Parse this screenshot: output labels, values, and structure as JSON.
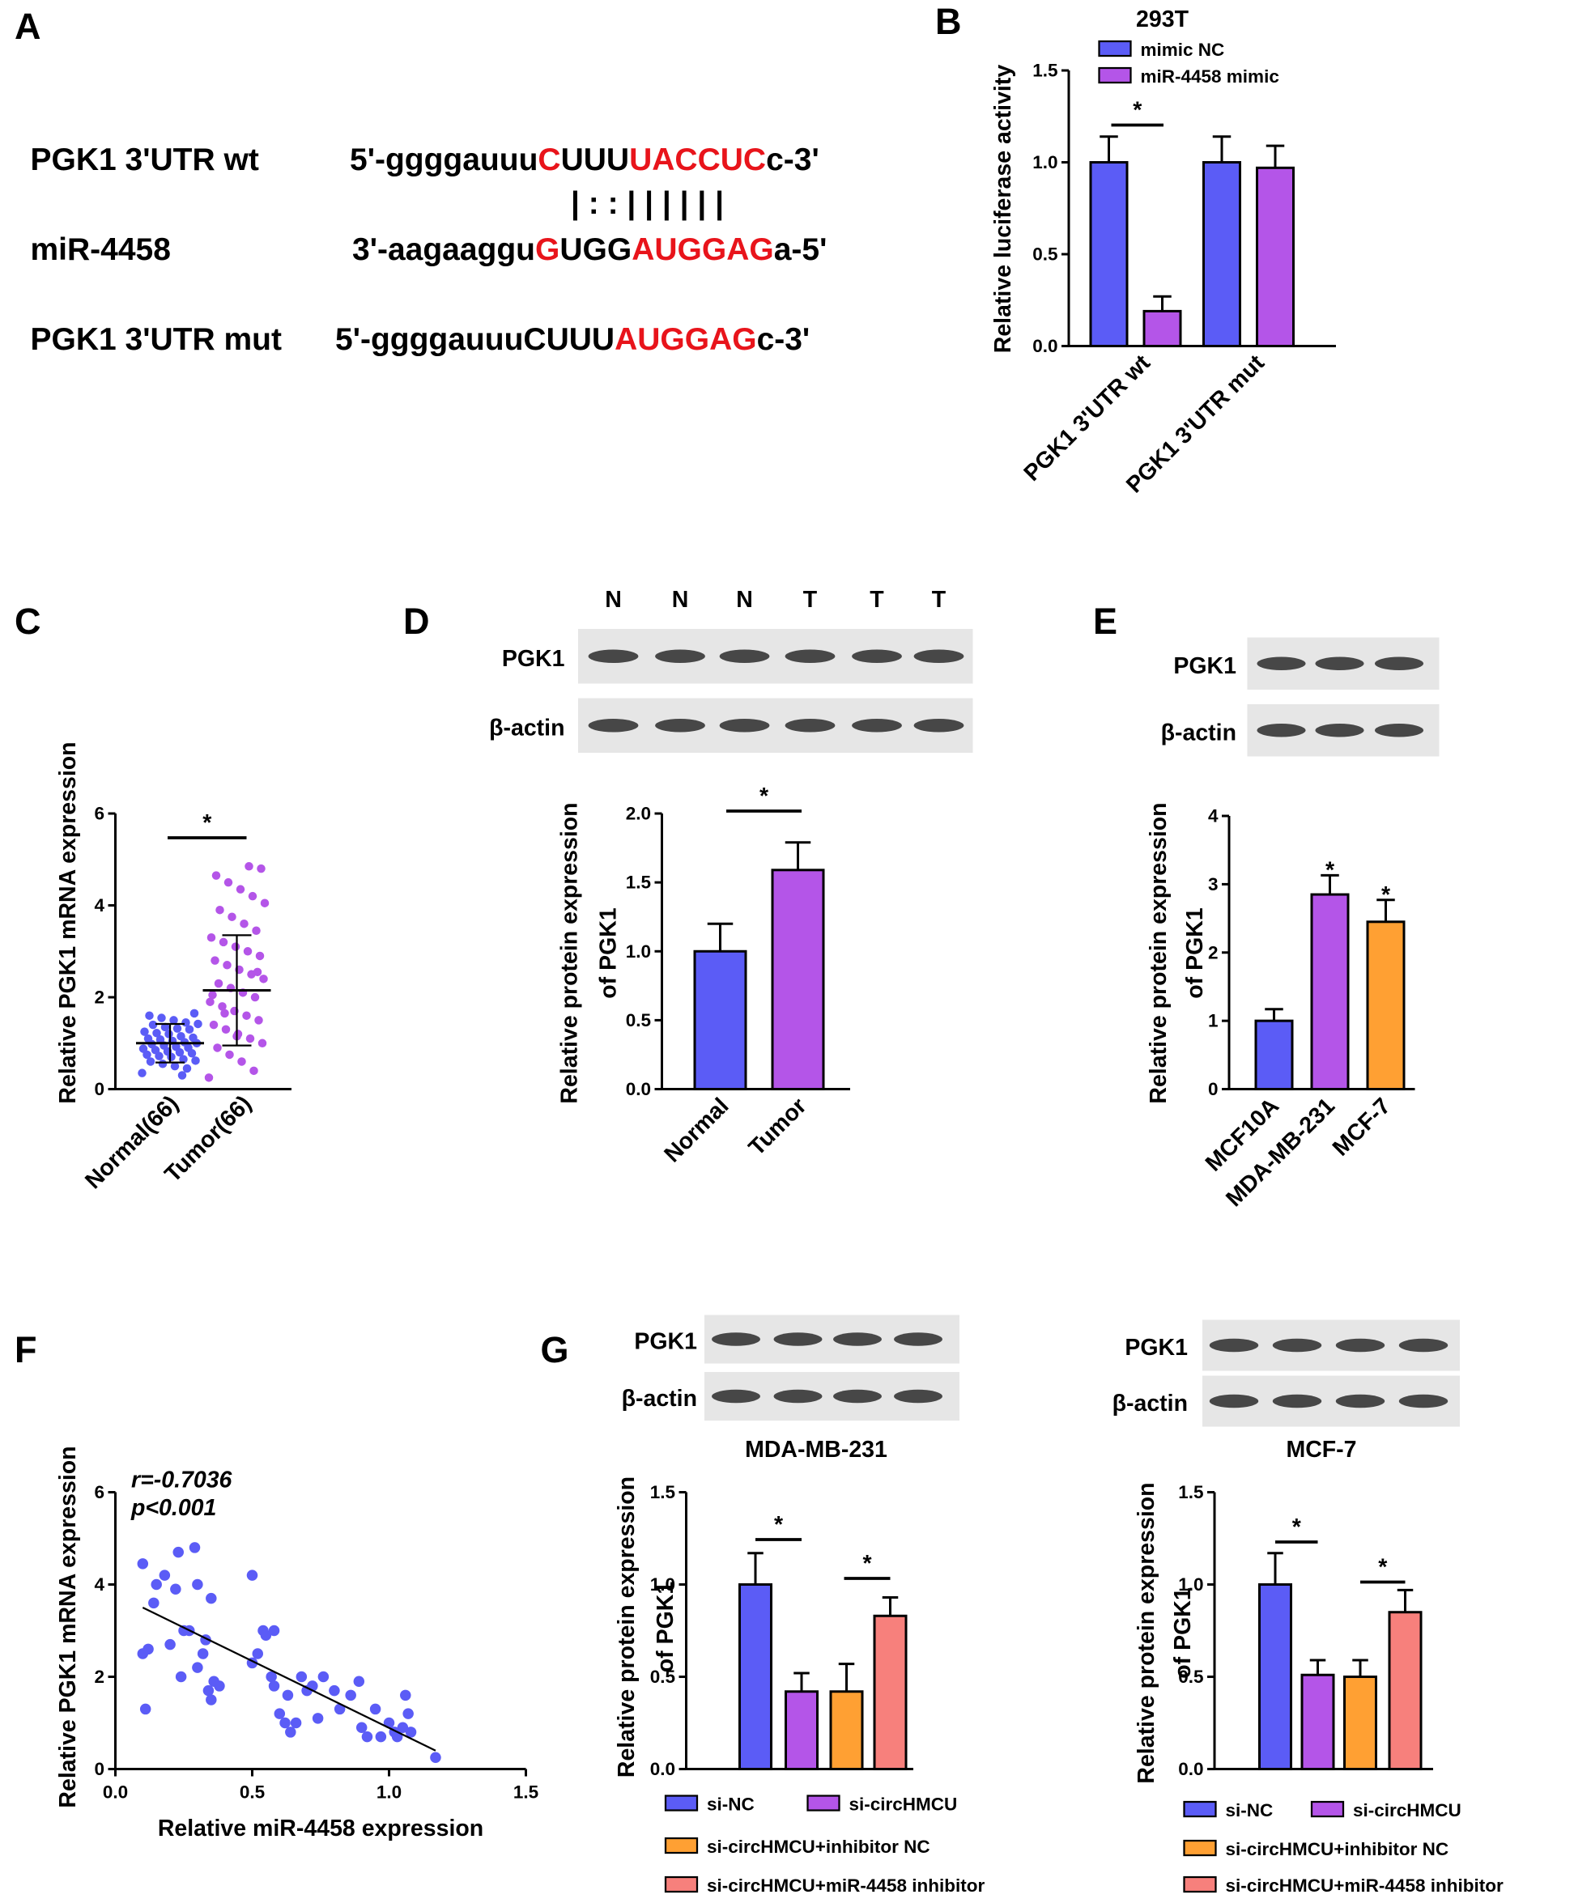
{
  "panel_labels": [
    "A",
    "B",
    "C",
    "D",
    "E",
    "F",
    "G"
  ],
  "sequence": {
    "rows": [
      {
        "label": "PGK1 3'UTR wt",
        "segments": [
          {
            "text": "5'-ggggauuu",
            "red": false
          },
          {
            "text": "C",
            "red": true
          },
          {
            "text": "UUU",
            "red": false
          },
          {
            "text": "UACCUC",
            "red": true
          },
          {
            "text": "c-3'",
            "red": false
          }
        ]
      },
      {
        "label": "miR-4458",
        "segments": [
          {
            "text": "3'-aagaaggu",
            "red": false
          },
          {
            "text": "G",
            "red": true
          },
          {
            "text": "UGG",
            "red": false
          },
          {
            "text": "AUGGAG",
            "red": true
          },
          {
            "text": "a-5'",
            "red": false
          }
        ]
      },
      {
        "label": "PGK1 3'UTR mut",
        "segments": [
          {
            "text": "5'-ggggauuuCUUU",
            "red": false
          },
          {
            "text": "AUGGAG",
            "red": true
          },
          {
            "text": "c-3'",
            "red": false
          }
        ]
      }
    ],
    "pairing": "|   : : | | | | | |"
  },
  "blots": [
    {
      "row_labels": [
        "PGK1",
        "β-actin"
      ],
      "lane_labels": [
        "N",
        "N",
        "N",
        "T",
        "T",
        "T"
      ]
    },
    {
      "row_labels": [
        "PGK1",
        "β-actin"
      ]
    },
    {
      "row_labels": [
        "PGK1",
        "β-actin"
      ]
    },
    {
      "row_labels": [
        "PGK1",
        "β-actin"
      ]
    }
  ],
  "chart_data": [
    {
      "type": "grouped-bar",
      "title": "293T",
      "y_label": "Relative luciferase activity",
      "categories": [
        "PGK1 3'UTR wt",
        "PGK1 3'UTR mut"
      ],
      "series": [
        {
          "name": "mimic NC",
          "color": "#5b5cf6",
          "values": [
            1.0,
            1.0
          ],
          "errors": [
            0.14,
            0.14
          ]
        },
        {
          "name": "miR-4458 mimic",
          "color": "#b455e8",
          "values": [
            0.19,
            0.97
          ],
          "errors": [
            0.08,
            0.12
          ]
        }
      ],
      "ylim": [
        0,
        1.5
      ],
      "yticks": [
        {
          "value": 0,
          "label": "0.0"
        },
        {
          "value": 0.5,
          "label": "0.5"
        },
        {
          "value": 1,
          "label": "1.0"
        },
        {
          "value": 1.5,
          "label": "1.5"
        }
      ],
      "significance": [
        "*"
      ]
    },
    {
      "type": "strip",
      "y_label": "Relative PGK1 mRNA expression",
      "categories": [
        "Normal(66)",
        "Tumor(66)"
      ],
      "colors": [
        "#5b5cf6",
        "#b455e8"
      ],
      "values": [
        [
          0.35,
          0.45,
          0.5,
          0.55,
          0.6,
          0.62,
          0.65,
          0.7,
          0.72,
          0.75,
          0.78,
          0.8,
          0.82,
          0.85,
          0.88,
          0.9,
          0.92,
          0.95,
          0.98,
          1.0,
          1.02,
          1.05,
          1.08,
          1.1,
          1.12,
          1.15,
          1.2,
          1.22,
          1.25,
          1.3,
          1.32,
          1.35,
          1.4,
          1.42,
          1.45,
          1.5,
          1.55,
          1.6,
          1.65,
          0.3
        ],
        [
          0.25,
          0.4,
          0.6,
          0.75,
          0.9,
          1.0,
          1.1,
          1.2,
          1.3,
          1.4,
          1.5,
          1.6,
          1.7,
          1.8,
          1.9,
          2.0,
          2.1,
          2.2,
          2.3,
          2.4,
          2.5,
          2.6,
          2.7,
          2.8,
          2.9,
          3.0,
          3.1,
          3.2,
          3.3,
          3.45,
          3.6,
          3.75,
          3.9,
          4.05,
          4.2,
          4.35,
          4.5,
          4.65,
          4.8,
          4.85,
          1.15,
          1.65,
          2.05,
          2.55
        ]
      ],
      "means": [
        1.0,
        2.15
      ],
      "sds": [
        0.42,
        1.2
      ],
      "ylim": [
        0,
        6
      ],
      "yticks": [
        0,
        2,
        4,
        6
      ],
      "significance": [
        "*"
      ]
    },
    {
      "type": "bar",
      "y_label": [
        "Relative protein expression",
        "of  PGK1"
      ],
      "categories": [
        "Normal",
        "Tumor"
      ],
      "colors": [
        "#5b5cf6",
        "#b455e8"
      ],
      "values": [
        1.0,
        1.59
      ],
      "errors": [
        0.2,
        0.2
      ],
      "ylim": [
        0,
        2
      ],
      "yticks": [
        {
          "value": 0,
          "label": "0.0"
        },
        {
          "value": 0.5,
          "label": "0.5"
        },
        {
          "value": 1,
          "label": "1.0"
        },
        {
          "value": 1.5,
          "label": "1.5"
        },
        {
          "value": 2,
          "label": "2.0"
        }
      ],
      "significance": [
        "*"
      ]
    },
    {
      "type": "bar",
      "y_label": [
        "Relative protein expression",
        "of  PGK1"
      ],
      "categories": [
        "MCF10A",
        "MDA-MB-231",
        "MCF-7"
      ],
      "colors": [
        "#5b5cf6",
        "#b455e8",
        "#ffa033"
      ],
      "values": [
        1.0,
        2.85,
        2.45
      ],
      "errors": [
        0.17,
        0.28,
        0.32
      ],
      "ylim": [
        0,
        4
      ],
      "yticks": [
        0,
        1,
        2,
        3,
        4
      ],
      "significance": [
        "*",
        "*"
      ]
    },
    {
      "type": "scatter",
      "x_label": "Relative miR-4458 expression",
      "y_label": "Relative PGK1 mRNA expression",
      "color": "#5b5cf6",
      "annotations": [
        "r=-0.7036",
        "p<0.001"
      ],
      "x": [
        0.1,
        0.1,
        0.11,
        0.12,
        0.14,
        0.15,
        0.18,
        0.2,
        0.22,
        0.23,
        0.24,
        0.25,
        0.27,
        0.29,
        0.3,
        0.3,
        0.32,
        0.33,
        0.34,
        0.35,
        0.35,
        0.36,
        0.38,
        0.5,
        0.5,
        0.52,
        0.54,
        0.55,
        0.57,
        0.58,
        0.58,
        0.6,
        0.62,
        0.63,
        0.64,
        0.66,
        0.68,
        0.7,
        0.72,
        0.74,
        0.76,
        0.8,
        0.82,
        0.86,
        0.89,
        0.9,
        0.92,
        0.95,
        0.97,
        1.0,
        1.02,
        1.03,
        1.05,
        1.06,
        1.07,
        1.08,
        1.17
      ],
      "y": [
        2.5,
        4.45,
        1.3,
        2.6,
        3.6,
        4.0,
        4.2,
        2.7,
        3.9,
        4.7,
        2.0,
        3.0,
        3.0,
        4.8,
        2.2,
        4.0,
        2.5,
        2.8,
        1.7,
        1.5,
        3.7,
        1.9,
        1.8,
        4.2,
        2.3,
        2.5,
        3.0,
        2.9,
        2.0,
        3.0,
        1.8,
        1.2,
        1.0,
        1.6,
        0.8,
        1.0,
        2.0,
        1.7,
        1.8,
        1.1,
        2.0,
        1.7,
        1.3,
        1.6,
        1.9,
        0.9,
        0.7,
        1.3,
        0.7,
        1.0,
        0.8,
        0.7,
        0.9,
        1.6,
        1.2,
        0.8,
        0.25
      ],
      "fit": {
        "x": [
          0.1,
          1.17
        ],
        "y": [
          3.5,
          0.4
        ]
      },
      "xlim": [
        0,
        1.5
      ],
      "xticks": [
        {
          "value": 0,
          "label": "0.0"
        },
        {
          "value": 0.5,
          "label": "0.5"
        },
        {
          "value": 1,
          "label": "1.0"
        },
        {
          "value": 1.5,
          "label": "1.5"
        }
      ],
      "ylim": [
        0,
        6
      ],
      "yticks": [
        0,
        2,
        4,
        6
      ]
    },
    {
      "type": "series-bar",
      "title": "MDA-MB-231",
      "y_label": [
        "Relative protein expression",
        "of  PGK1"
      ],
      "series": [
        {
          "name": "si-NC",
          "color": "#5b5cf6",
          "values": [
            1.0
          ],
          "errors": [
            0.17
          ]
        },
        {
          "name": "si-circHMCU",
          "color": "#b455e8",
          "values": [
            0.42
          ],
          "errors": [
            0.1
          ]
        },
        {
          "name": "si-circHMCU+inhibitor NC",
          "color": "#ffa033",
          "values": [
            0.42
          ],
          "errors": [
            0.15
          ]
        },
        {
          "name": "si-circHMCU+miR-4458 inhibitor",
          "color": "#f7807c",
          "values": [
            0.83
          ],
          "errors": [
            0.1
          ]
        }
      ],
      "ylim": [
        0,
        1.5
      ],
      "yticks": [
        {
          "value": 0,
          "label": "0.0"
        },
        {
          "value": 0.5,
          "label": "0.5"
        },
        {
          "value": 1,
          "label": "1.0"
        },
        {
          "value": 1.5,
          "label": "1.5"
        }
      ],
      "significance": [
        "*",
        "*"
      ]
    },
    {
      "type": "series-bar",
      "title": "MCF-7",
      "y_label": [
        "Relative protein expression",
        "of  PGK1"
      ],
      "series": [
        {
          "name": "si-NC",
          "color": "#5b5cf6",
          "values": [
            1.0
          ],
          "errors": [
            0.17
          ]
        },
        {
          "name": "si-circHMCU",
          "color": "#b455e8",
          "values": [
            0.51
          ],
          "errors": [
            0.08
          ]
        },
        {
          "name": "si-circHMCU+inhibitor NC",
          "color": "#ffa033",
          "values": [
            0.5
          ],
          "errors": [
            0.09
          ]
        },
        {
          "name": "si-circHMCU+miR-4458 inhibitor",
          "color": "#f7807c",
          "values": [
            0.85
          ],
          "errors": [
            0.12
          ]
        }
      ],
      "ylim": [
        0,
        1.5
      ],
      "yticks": [
        {
          "value": 0,
          "label": "0.0"
        },
        {
          "value": 0.5,
          "label": "0.5"
        },
        {
          "value": 1,
          "label": "1.0"
        },
        {
          "value": 1.5,
          "label": "1.5"
        }
      ],
      "significance": [
        "*",
        "*"
      ]
    }
  ]
}
